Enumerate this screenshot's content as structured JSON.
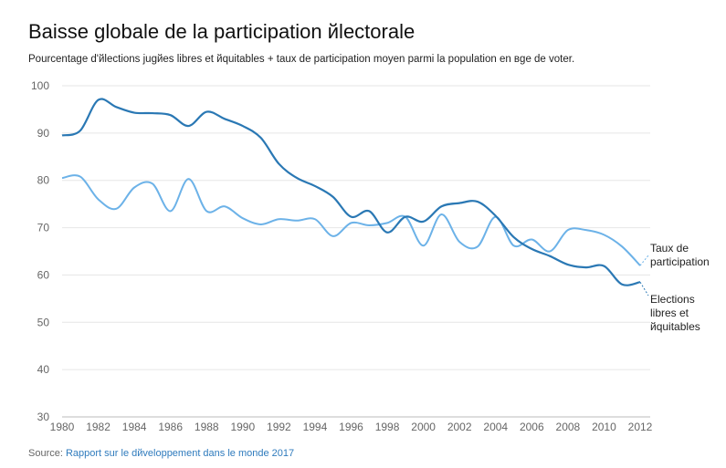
{
  "chart_data": {
    "type": "line",
    "title": "Baisse globale de la participation йlectorale",
    "subtitle": "Pourcentage d'йlections jugйes libres et йquitables + taux de participation moyen parmi la population en вge de voter.",
    "source_label": "Source:",
    "source_text": "Rapport sur le dйveloppement dans le monde 2017",
    "xlim": [
      1980,
      2012
    ],
    "ylim": [
      30,
      100
    ],
    "xticks": [
      1980,
      1982,
      1984,
      1986,
      1988,
      1990,
      1992,
      1994,
      1996,
      1998,
      2000,
      2002,
      2004,
      2006,
      2008,
      2010,
      2012
    ],
    "yticks": [
      30,
      40,
      50,
      60,
      70,
      80,
      90,
      100
    ],
    "grid": true,
    "x": [
      1980,
      1981,
      1982,
      1983,
      1984,
      1985,
      1986,
      1987,
      1988,
      1989,
      1990,
      1991,
      1992,
      1993,
      1994,
      1995,
      1996,
      1997,
      1998,
      1999,
      2000,
      2001,
      2002,
      2003,
      2004,
      2005,
      2006,
      2007,
      2008,
      2009,
      2010,
      2011,
      2012
    ],
    "series": [
      {
        "name": "Taux de participation",
        "label_lines": [
          "Taux de",
          "participation"
        ],
        "color": "#6cb2e8",
        "values": [
          80.5,
          80.8,
          76,
          74,
          78.5,
          79.3,
          73.5,
          80.3,
          73.5,
          74.5,
          72,
          70.7,
          71.8,
          71.5,
          71.8,
          68.2,
          71,
          70.5,
          71,
          72.3,
          66.2,
          72.8,
          67,
          66,
          72.3,
          66.2,
          67.5,
          65,
          69.5,
          69.5,
          68.5,
          66,
          62
        ]
      },
      {
        "name": "Elections libres et йquitables",
        "label_lines": [
          "Elections",
          "libres et",
          "йquitables"
        ],
        "color": "#2a78b4",
        "values": [
          89.5,
          90.5,
          97,
          95.5,
          94.3,
          94.2,
          93.8,
          91.5,
          94.5,
          93,
          91.5,
          89,
          83.5,
          80.5,
          78.8,
          76.5,
          72.3,
          73.5,
          69,
          72.3,
          71.3,
          74.5,
          75.2,
          75.5,
          72.5,
          68,
          65.5,
          64,
          62.2,
          61.6,
          61.9,
          58,
          58.5
        ]
      }
    ]
  }
}
